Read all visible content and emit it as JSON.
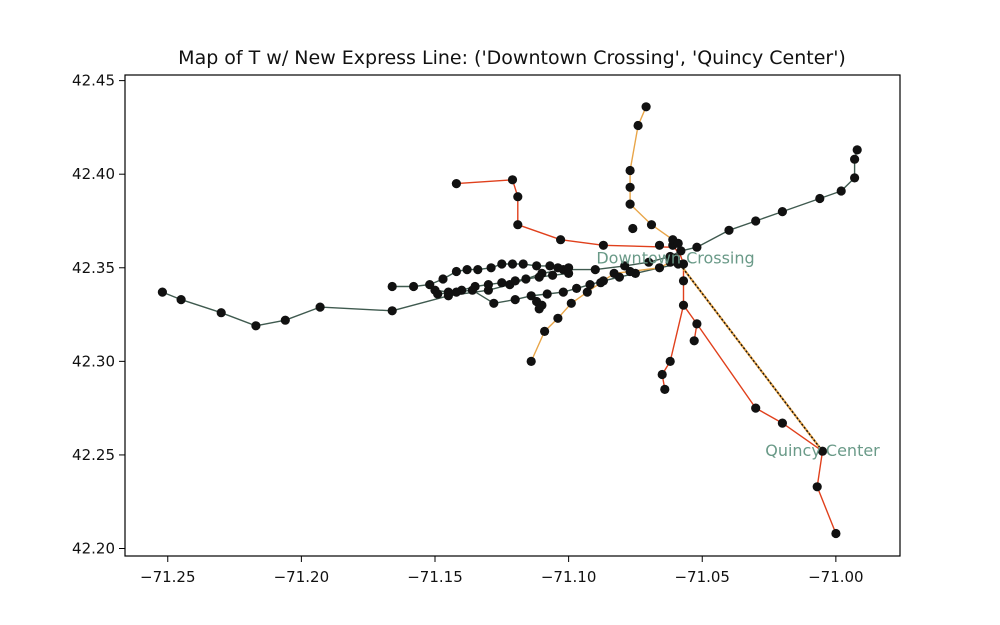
{
  "chart_data": {
    "type": "scatter",
    "title": "Map of T w/ New Express Line: ('Downtown Crossing', 'Quincy Center')",
    "xlabel": "",
    "ylabel": "",
    "xlim": [
      -71.266,
      -70.976
    ],
    "ylim": [
      42.196,
      42.453
    ],
    "x_ticks": [
      -71.25,
      -71.2,
      -71.15,
      -71.1,
      -71.05,
      -71.0
    ],
    "x_tick_labels": [
      "−71.25",
      "−71.20",
      "−71.15",
      "−71.10",
      "−71.05",
      "−71.00"
    ],
    "y_ticks": [
      42.2,
      42.25,
      42.3,
      42.35,
      42.4,
      42.45
    ],
    "y_tick_labels": [
      "42.20",
      "42.25",
      "42.30",
      "42.35",
      "42.40",
      "42.45"
    ],
    "grid": false,
    "colors": {
      "green": "#3f5a4f",
      "red": "#e0401c",
      "orange": "#e8a548",
      "station": "#111111",
      "express": "#111111",
      "label": "#6a9a88"
    },
    "lines": [
      {
        "color_key": "green",
        "points": [
          [
            -71.252,
            42.337
          ],
          [
            -71.245,
            42.333
          ],
          [
            -71.23,
            42.326
          ],
          [
            -71.217,
            42.319
          ],
          [
            -71.206,
            42.322
          ],
          [
            -71.193,
            42.329
          ],
          [
            -71.166,
            42.327
          ],
          [
            -71.145,
            42.335
          ],
          [
            -71.13,
            42.338
          ],
          [
            -71.122,
            42.341
          ],
          [
            -71.116,
            42.344
          ],
          [
            -71.11,
            42.347
          ],
          [
            -71.102,
            42.349
          ],
          [
            -71.09,
            42.349
          ],
          [
            -71.079,
            42.351
          ],
          [
            -71.07,
            42.353
          ],
          [
            -71.062,
            42.356
          ],
          [
            -71.058,
            42.359
          ],
          [
            -71.052,
            42.361
          ],
          [
            -71.04,
            42.37
          ],
          [
            -71.03,
            42.375
          ],
          [
            -71.02,
            42.38
          ],
          [
            -71.006,
            42.387
          ],
          [
            -70.998,
            42.391
          ],
          [
            -70.993,
            42.398
          ],
          [
            -70.993,
            42.408
          ],
          [
            -70.992,
            42.413
          ]
        ]
      },
      {
        "color_key": "green",
        "points": [
          [
            -71.166,
            42.34
          ],
          [
            -71.158,
            42.34
          ],
          [
            -71.152,
            42.341
          ],
          [
            -71.147,
            42.344
          ],
          [
            -71.142,
            42.348
          ],
          [
            -71.138,
            42.349
          ],
          [
            -71.134,
            42.349
          ],
          [
            -71.129,
            42.35
          ],
          [
            -71.125,
            42.352
          ],
          [
            -71.121,
            42.352
          ],
          [
            -71.117,
            42.352
          ],
          [
            -71.112,
            42.351
          ],
          [
            -71.107,
            42.351
          ],
          [
            -71.104,
            42.35
          ],
          [
            -71.1,
            42.35
          ]
        ]
      },
      {
        "color_key": "green",
        "points": [
          [
            -71.15,
            42.338
          ],
          [
            -71.145,
            42.337
          ],
          [
            -71.14,
            42.338
          ],
          [
            -71.135,
            42.34
          ],
          [
            -71.13,
            42.341
          ],
          [
            -71.125,
            42.342
          ],
          [
            -71.12,
            42.343
          ],
          [
            -71.116,
            42.344
          ],
          [
            -71.111,
            42.345
          ],
          [
            -71.106,
            42.346
          ],
          [
            -71.1,
            42.347
          ]
        ]
      },
      {
        "color_key": "green",
        "points": [
          [
            -71.149,
            42.336
          ],
          [
            -71.142,
            42.337
          ],
          [
            -71.136,
            42.338
          ],
          [
            -71.128,
            42.331
          ],
          [
            -71.12,
            42.333
          ],
          [
            -71.114,
            42.335
          ],
          [
            -71.108,
            42.336
          ],
          [
            -71.102,
            42.337
          ],
          [
            -71.097,
            42.339
          ],
          [
            -71.092,
            42.341
          ],
          [
            -71.087,
            42.343
          ],
          [
            -71.081,
            42.345
          ],
          [
            -71.075,
            42.347
          ],
          [
            -71.066,
            42.35
          ],
          [
            -71.059,
            42.352
          ]
        ]
      },
      {
        "color_key": "red",
        "points": [
          [
            -71.142,
            42.395
          ],
          [
            -71.121,
            42.397
          ],
          [
            -71.119,
            42.388
          ],
          [
            -71.119,
            42.373
          ],
          [
            -71.103,
            42.365
          ],
          [
            -71.087,
            42.362
          ],
          [
            -71.062,
            42.361
          ]
        ]
      },
      {
        "color_key": "red",
        "points": [
          [
            -71.061,
            42.362
          ],
          [
            -71.058,
            42.356
          ],
          [
            -71.057,
            42.352
          ],
          [
            -71.057,
            42.343
          ],
          [
            -71.057,
            42.33
          ],
          [
            -71.052,
            42.32
          ],
          [
            -71.053,
            42.311
          ]
        ]
      },
      {
        "color_key": "red",
        "points": [
          [
            -71.057,
            42.33
          ],
          [
            -71.062,
            42.3
          ],
          [
            -71.065,
            42.293
          ],
          [
            -71.064,
            42.285
          ]
        ]
      },
      {
        "color_key": "red",
        "points": [
          [
            -71.052,
            42.32
          ],
          [
            -71.03,
            42.275
          ],
          [
            -71.02,
            42.267
          ],
          [
            -71.005,
            42.252
          ],
          [
            -71.007,
            42.233
          ],
          [
            -71.0,
            42.208
          ]
        ]
      },
      {
        "color_key": "orange",
        "points": [
          [
            -71.071,
            42.436
          ],
          [
            -71.074,
            42.426
          ],
          [
            -71.077,
            42.402
          ],
          [
            -71.077,
            42.393
          ],
          [
            -71.077,
            42.384
          ],
          [
            -71.069,
            42.373
          ],
          [
            -71.061,
            42.365
          ],
          [
            -71.058,
            42.359
          ],
          [
            -71.06,
            42.355
          ],
          [
            -71.062,
            42.353
          ],
          [
            -71.066,
            42.35
          ],
          [
            -71.077,
            42.348
          ],
          [
            -71.083,
            42.347
          ],
          [
            -71.088,
            42.342
          ],
          [
            -71.093,
            42.337
          ],
          [
            -71.099,
            42.331
          ],
          [
            -71.104,
            42.323
          ],
          [
            -71.109,
            42.316
          ],
          [
            -71.114,
            42.3
          ]
        ]
      }
    ],
    "stations": [
      [
        -71.252,
        42.337
      ],
      [
        -71.245,
        42.333
      ],
      [
        -71.23,
        42.326
      ],
      [
        -71.217,
        42.319
      ],
      [
        -71.206,
        42.322
      ],
      [
        -71.193,
        42.329
      ],
      [
        -71.166,
        42.327
      ],
      [
        -71.145,
        42.335
      ],
      [
        -71.13,
        42.338
      ],
      [
        -71.122,
        42.341
      ],
      [
        -71.116,
        42.344
      ],
      [
        -71.11,
        42.347
      ],
      [
        -71.102,
        42.349
      ],
      [
        -71.09,
        42.349
      ],
      [
        -71.079,
        42.351
      ],
      [
        -71.07,
        42.353
      ],
      [
        -71.062,
        42.356
      ],
      [
        -71.058,
        42.359
      ],
      [
        -71.052,
        42.361
      ],
      [
        -71.04,
        42.37
      ],
      [
        -71.03,
        42.375
      ],
      [
        -71.02,
        42.38
      ],
      [
        -71.006,
        42.387
      ],
      [
        -70.998,
        42.391
      ],
      [
        -70.993,
        42.398
      ],
      [
        -70.993,
        42.408
      ],
      [
        -70.992,
        42.413
      ],
      [
        -71.166,
        42.34
      ],
      [
        -71.158,
        42.34
      ],
      [
        -71.152,
        42.341
      ],
      [
        -71.147,
        42.344
      ],
      [
        -71.142,
        42.348
      ],
      [
        -71.138,
        42.349
      ],
      [
        -71.134,
        42.349
      ],
      [
        -71.129,
        42.35
      ],
      [
        -71.125,
        42.352
      ],
      [
        -71.121,
        42.352
      ],
      [
        -71.117,
        42.352
      ],
      [
        -71.112,
        42.351
      ],
      [
        -71.107,
        42.351
      ],
      [
        -71.104,
        42.35
      ],
      [
        -71.1,
        42.35
      ],
      [
        -71.15,
        42.338
      ],
      [
        -71.145,
        42.337
      ],
      [
        -71.14,
        42.338
      ],
      [
        -71.135,
        42.34
      ],
      [
        -71.13,
        42.341
      ],
      [
        -71.125,
        42.342
      ],
      [
        -71.12,
        42.343
      ],
      [
        -71.111,
        42.345
      ],
      [
        -71.106,
        42.346
      ],
      [
        -71.1,
        42.347
      ],
      [
        -71.149,
        42.336
      ],
      [
        -71.142,
        42.337
      ],
      [
        -71.136,
        42.338
      ],
      [
        -71.128,
        42.331
      ],
      [
        -71.12,
        42.333
      ],
      [
        -71.114,
        42.335
      ],
      [
        -71.108,
        42.336
      ],
      [
        -71.102,
        42.337
      ],
      [
        -71.097,
        42.339
      ],
      [
        -71.092,
        42.341
      ],
      [
        -71.087,
        42.343
      ],
      [
        -71.081,
        42.345
      ],
      [
        -71.075,
        42.347
      ],
      [
        -71.066,
        42.35
      ],
      [
        -71.059,
        42.352
      ],
      [
        -71.112,
        42.332
      ],
      [
        -71.11,
        42.33
      ],
      [
        -71.111,
        42.328
      ],
      [
        -71.142,
        42.395
      ],
      [
        -71.121,
        42.397
      ],
      [
        -71.119,
        42.388
      ],
      [
        -71.119,
        42.373
      ],
      [
        -71.103,
        42.365
      ],
      [
        -71.087,
        42.362
      ],
      [
        -71.061,
        42.362
      ],
      [
        -71.057,
        42.352
      ],
      [
        -71.057,
        42.343
      ],
      [
        -71.057,
        42.33
      ],
      [
        -71.052,
        42.32
      ],
      [
        -71.053,
        42.311
      ],
      [
        -71.062,
        42.3
      ],
      [
        -71.065,
        42.293
      ],
      [
        -71.064,
        42.285
      ],
      [
        -71.03,
        42.275
      ],
      [
        -71.02,
        42.267
      ],
      [
        -71.005,
        42.252
      ],
      [
        -71.007,
        42.233
      ],
      [
        -71.0,
        42.208
      ],
      [
        -71.071,
        42.436
      ],
      [
        -71.074,
        42.426
      ],
      [
        -71.077,
        42.402
      ],
      [
        -71.077,
        42.393
      ],
      [
        -71.077,
        42.384
      ],
      [
        -71.069,
        42.373
      ],
      [
        -71.061,
        42.365
      ],
      [
        -71.06,
        42.355
      ],
      [
        -71.062,
        42.353
      ],
      [
        -71.077,
        42.348
      ],
      [
        -71.083,
        42.347
      ],
      [
        -71.088,
        42.342
      ],
      [
        -71.093,
        42.337
      ],
      [
        -71.099,
        42.331
      ],
      [
        -71.104,
        42.323
      ],
      [
        -71.109,
        42.316
      ],
      [
        -71.114,
        42.3
      ],
      [
        -71.066,
        42.362
      ],
      [
        -71.076,
        42.371
      ],
      [
        -71.059,
        42.363
      ]
    ],
    "express": {
      "from": [
        -71.06,
        42.355
      ],
      "to": [
        -71.005,
        42.252
      ]
    },
    "annotations": [
      {
        "text": "Downtown Crossing",
        "x": -71.06,
        "y": 42.355
      },
      {
        "text": "Quincy Center",
        "x": -71.005,
        "y": 42.252
      }
    ]
  }
}
